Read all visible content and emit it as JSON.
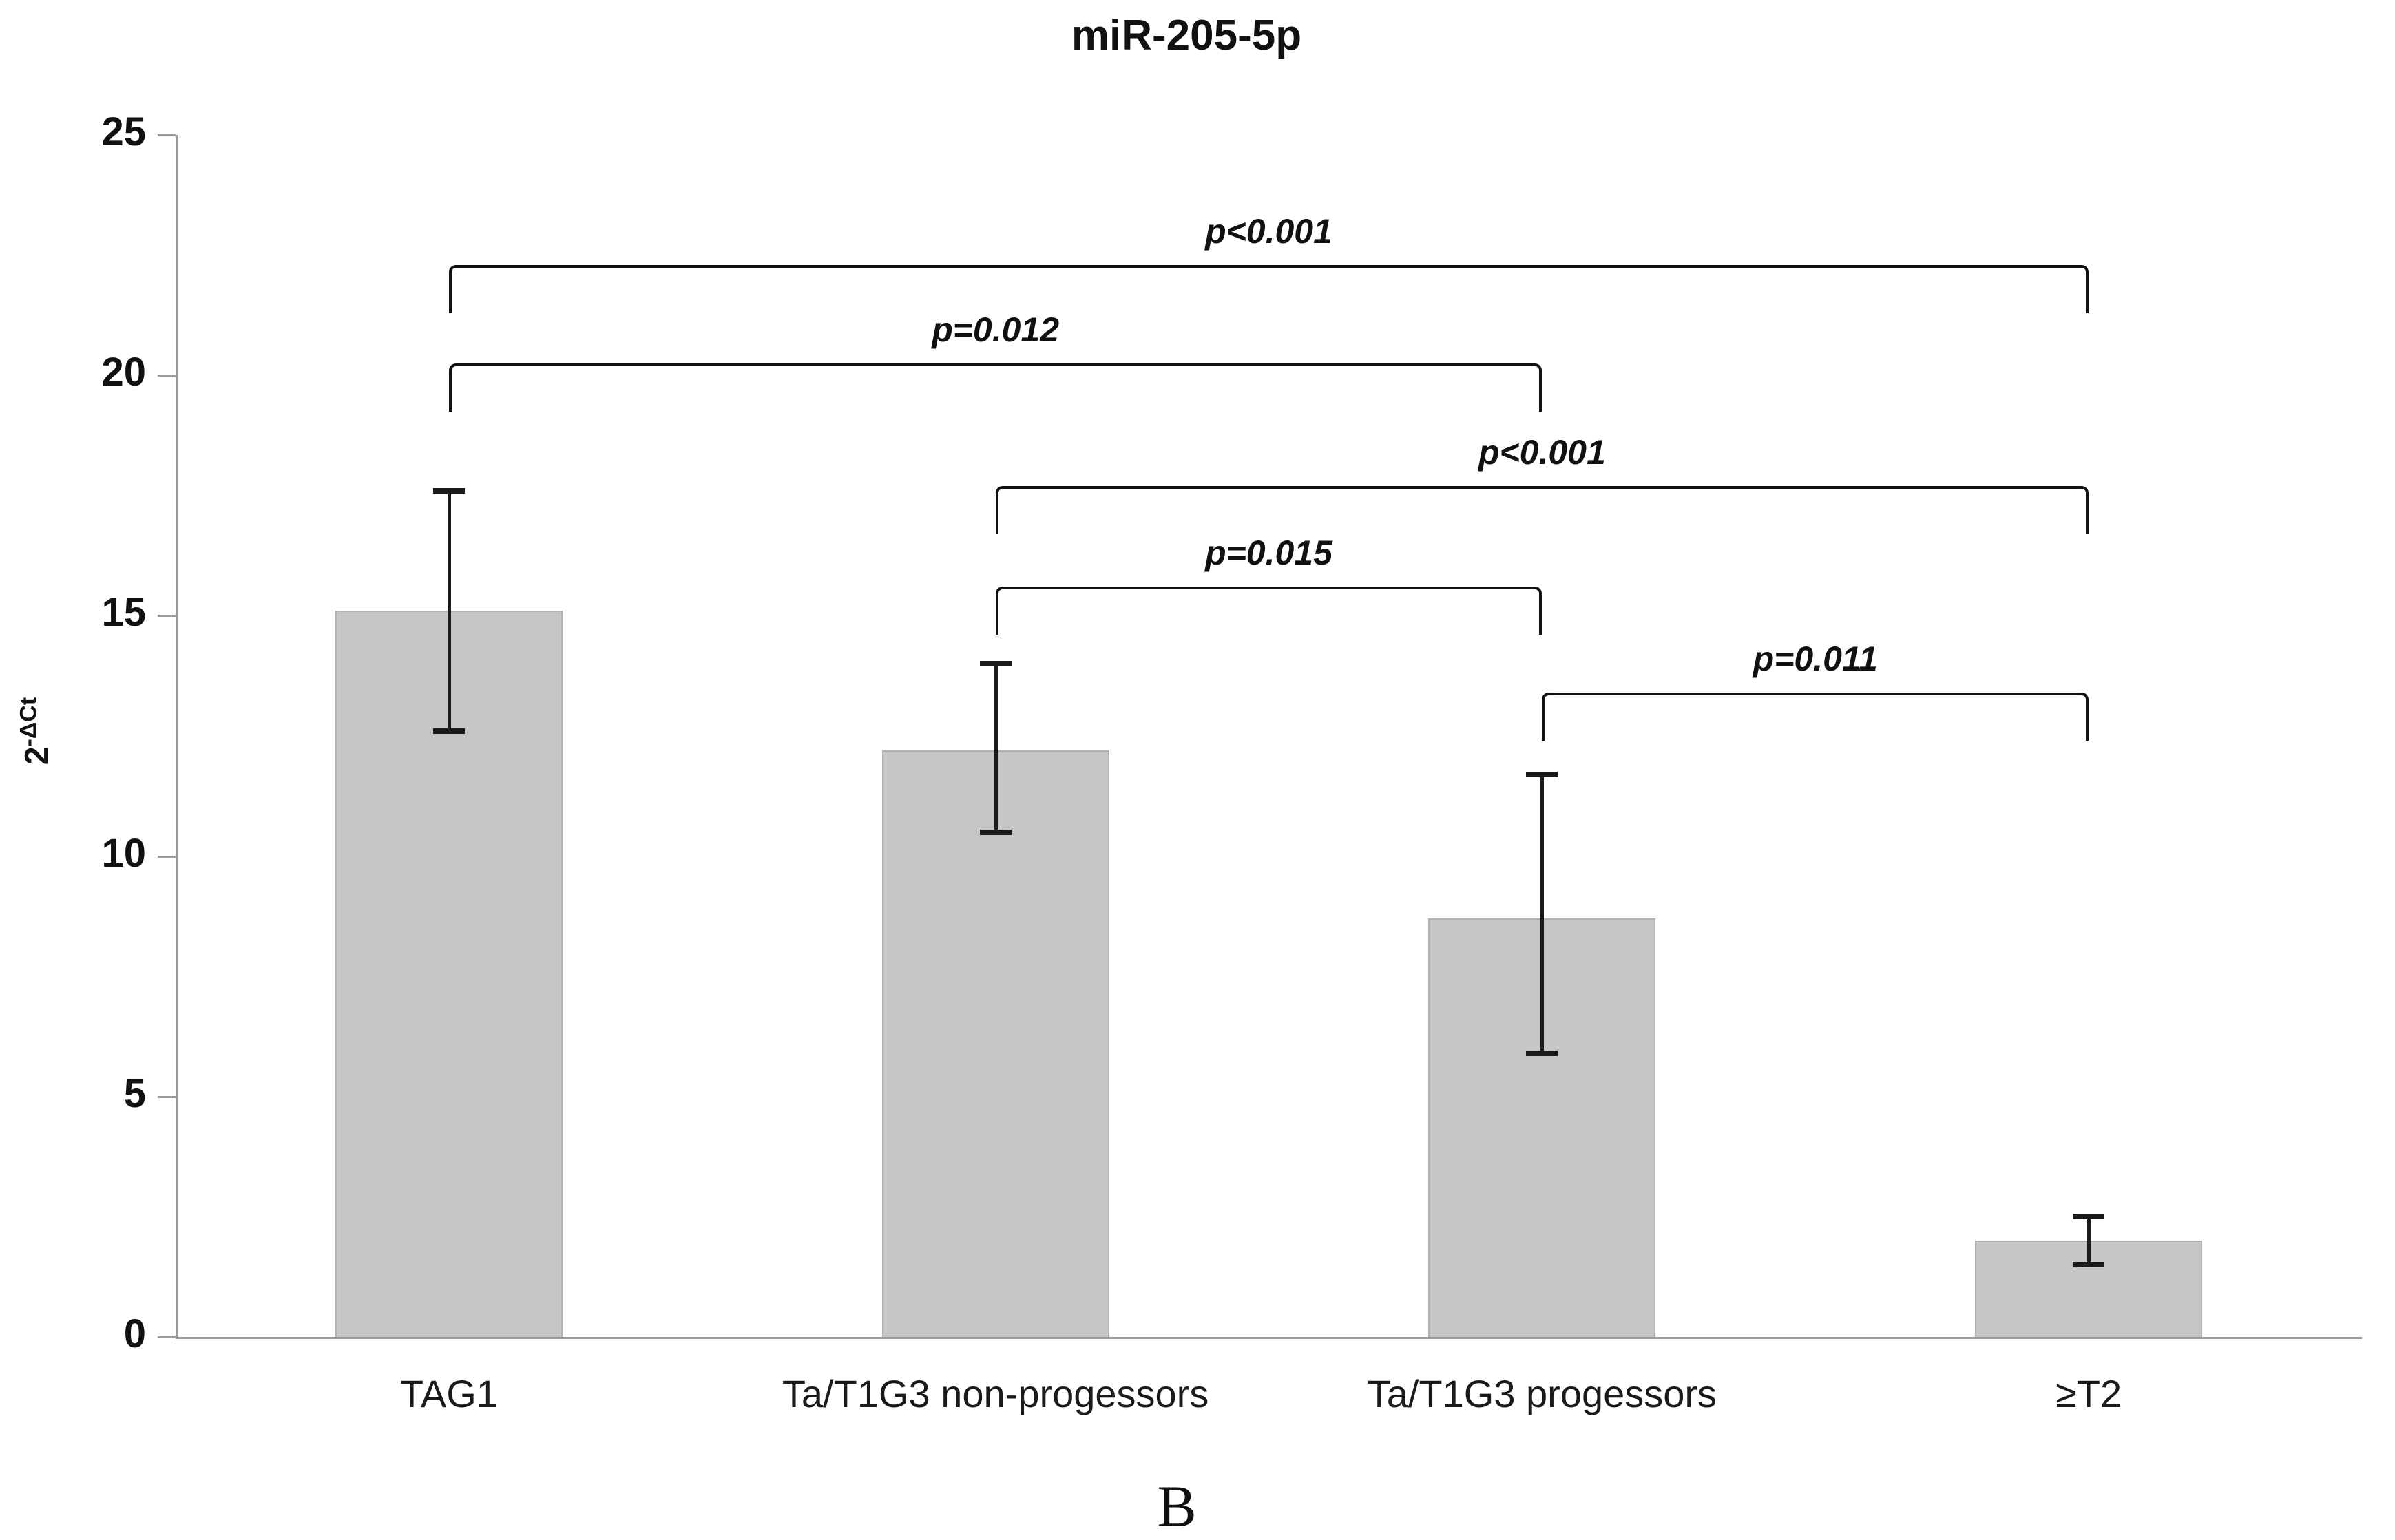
{
  "figure_label": "B",
  "chart_data": {
    "type": "bar",
    "title": "miR-205-5p",
    "ylabel": "2^-ΔCt",
    "ylabel_base": "2",
    "ylabel_sup": "-ΔCt",
    "xlabel": "",
    "categories": [
      "TAG1",
      "Ta/T1G3 non-progessors",
      "Ta/T1G3 progessors",
      "≥T2"
    ],
    "values": [
      15.1,
      12.2,
      8.7,
      2.0
    ],
    "error_high": [
      17.6,
      14.0,
      11.7,
      2.5
    ],
    "error_low": [
      12.6,
      10.5,
      5.9,
      1.5
    ],
    "ylim": [
      0,
      25
    ],
    "yticks": [
      0,
      5,
      10,
      15,
      20,
      25
    ],
    "grid": false,
    "legend": "none",
    "bar_color": "#c6c6c6",
    "bar_border_color": "#b2b2b2",
    "axis_color": "#9a9a9a",
    "error_bar_color": "#1a1a1a",
    "significance_brackets": [
      {
        "label": "p<0.001",
        "from": "TAG1",
        "to": "≥T2",
        "from_index": 0,
        "to_index": 3,
        "y_value": 22.3
      },
      {
        "label": "p=0.012",
        "from": "TAG1",
        "to": "Ta/T1G3 progessors",
        "from_index": 0,
        "to_index": 2,
        "y_value": 20.25
      },
      {
        "label": "p<0.001",
        "from": "Ta/T1G3 non-progessors",
        "to": "≥T2",
        "from_index": 1,
        "to_index": 3,
        "y_value": 17.7
      },
      {
        "label": "p=0.015",
        "from": "Ta/T1G3 non-progessors",
        "to": "Ta/T1G3 progessors",
        "from_index": 1,
        "to_index": 2,
        "y_value": 15.6
      },
      {
        "label": "p=0.011",
        "from": "Ta/T1G3 progessors",
        "to": "≥T2",
        "from_index": 2,
        "to_index": 3,
        "y_value": 13.4
      }
    ]
  }
}
